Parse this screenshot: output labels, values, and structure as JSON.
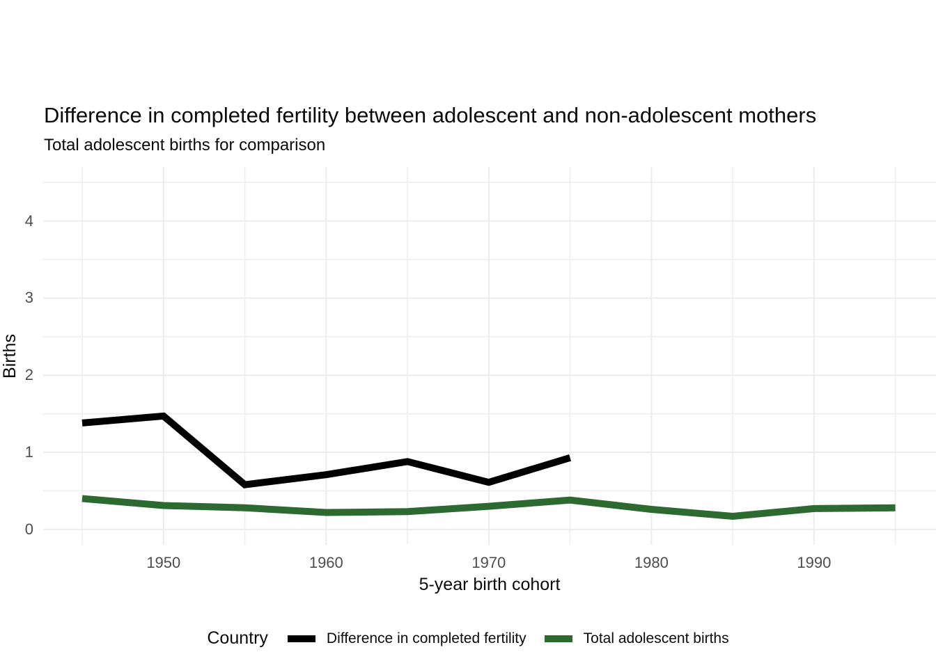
{
  "chart_data": {
    "type": "line",
    "title": "Difference in completed fertility between adolescent and non-adolescent mothers",
    "subtitle": "Total adolescent births for comparison",
    "xlabel": "5-year birth cohort",
    "ylabel": "Births",
    "legend_title": "Country",
    "legend_position": "bottom",
    "grid": true,
    "xlim": [
      1942.6,
      1997.5
    ],
    "ylim": [
      -0.2,
      4.7
    ],
    "xticks": [
      1950,
      1960,
      1970,
      1980,
      1990
    ],
    "xticks_minor": [
      1945,
      1955,
      1965,
      1975,
      1985,
      1995
    ],
    "yticks": [
      0,
      1,
      2,
      3,
      4
    ],
    "yticks_minor": [
      0.5,
      1.5,
      2.5,
      3.5,
      4.5
    ],
    "series": [
      {
        "name": "Difference in completed fertility",
        "color": "#000000",
        "x": [
          1945,
          1950,
          1955,
          1960,
          1965,
          1970,
          1975
        ],
        "y": [
          1.38,
          1.47,
          0.58,
          0.71,
          0.88,
          0.61,
          0.93
        ]
      },
      {
        "name": "Total adolescent births",
        "color": "#2d6a31",
        "x": [
          1945,
          1950,
          1955,
          1960,
          1965,
          1970,
          1975,
          1980,
          1985,
          1990,
          1995
        ],
        "y": [
          0.4,
          0.31,
          0.28,
          0.22,
          0.23,
          0.3,
          0.38,
          0.26,
          0.17,
          0.27,
          0.28
        ]
      }
    ],
    "style": {
      "grid_major_color": "#ececec",
      "grid_minor_color": "#f1f1f1",
      "tick_label_color": "#4d4d4d",
      "line_width": 10
    }
  }
}
